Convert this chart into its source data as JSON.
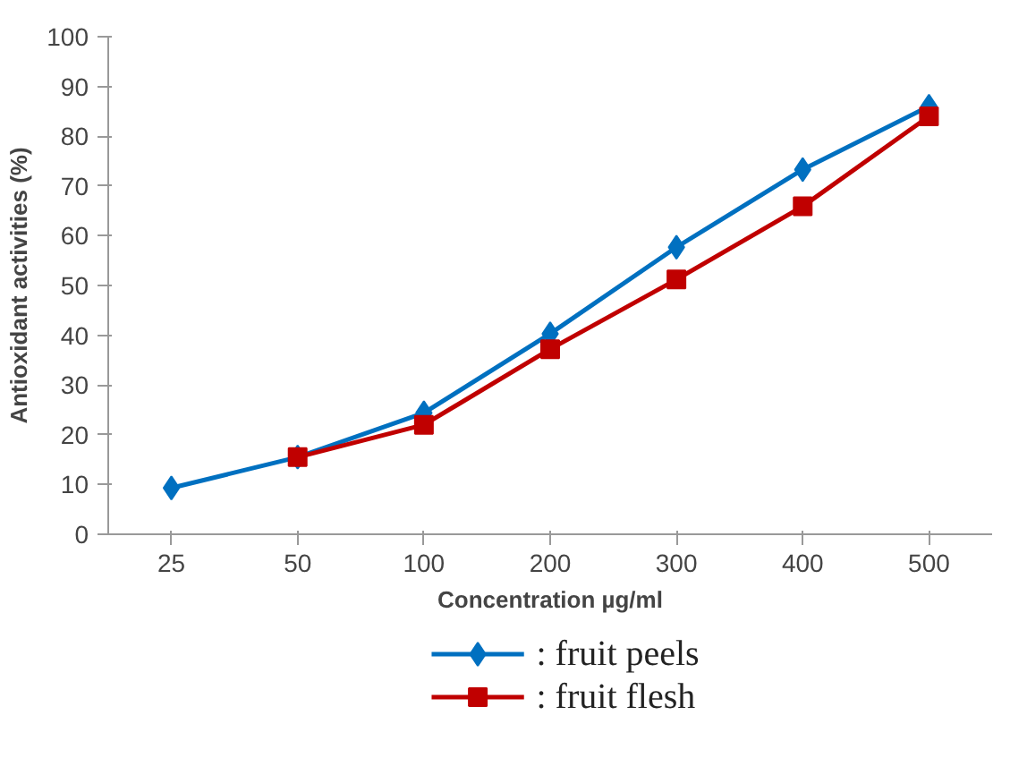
{
  "chart_data": {
    "type": "line",
    "xlabel": "Concentration µg/ml",
    "ylabel": "Antioxidant activities (%)",
    "categories": [
      "25",
      "50",
      "100",
      "200",
      "300",
      "400",
      "500"
    ],
    "ylim": [
      0,
      100
    ],
    "yticks": [
      0,
      10,
      20,
      30,
      40,
      50,
      60,
      70,
      80,
      90,
      100
    ],
    "grid": false,
    "legend": "bottom",
    "series": [
      {
        "name": ": fruit peels",
        "color": "#0070c0",
        "marker": "diamond",
        "values": [
          9.3,
          15.5,
          24.4,
          40.3,
          57.7,
          73.3,
          86
        ]
      },
      {
        "name": ": fruit flesh",
        "color": "#c00000",
        "marker": "square",
        "values": [
          null,
          15.5,
          22,
          37.2,
          51.2,
          65.9,
          84
        ]
      }
    ]
  }
}
